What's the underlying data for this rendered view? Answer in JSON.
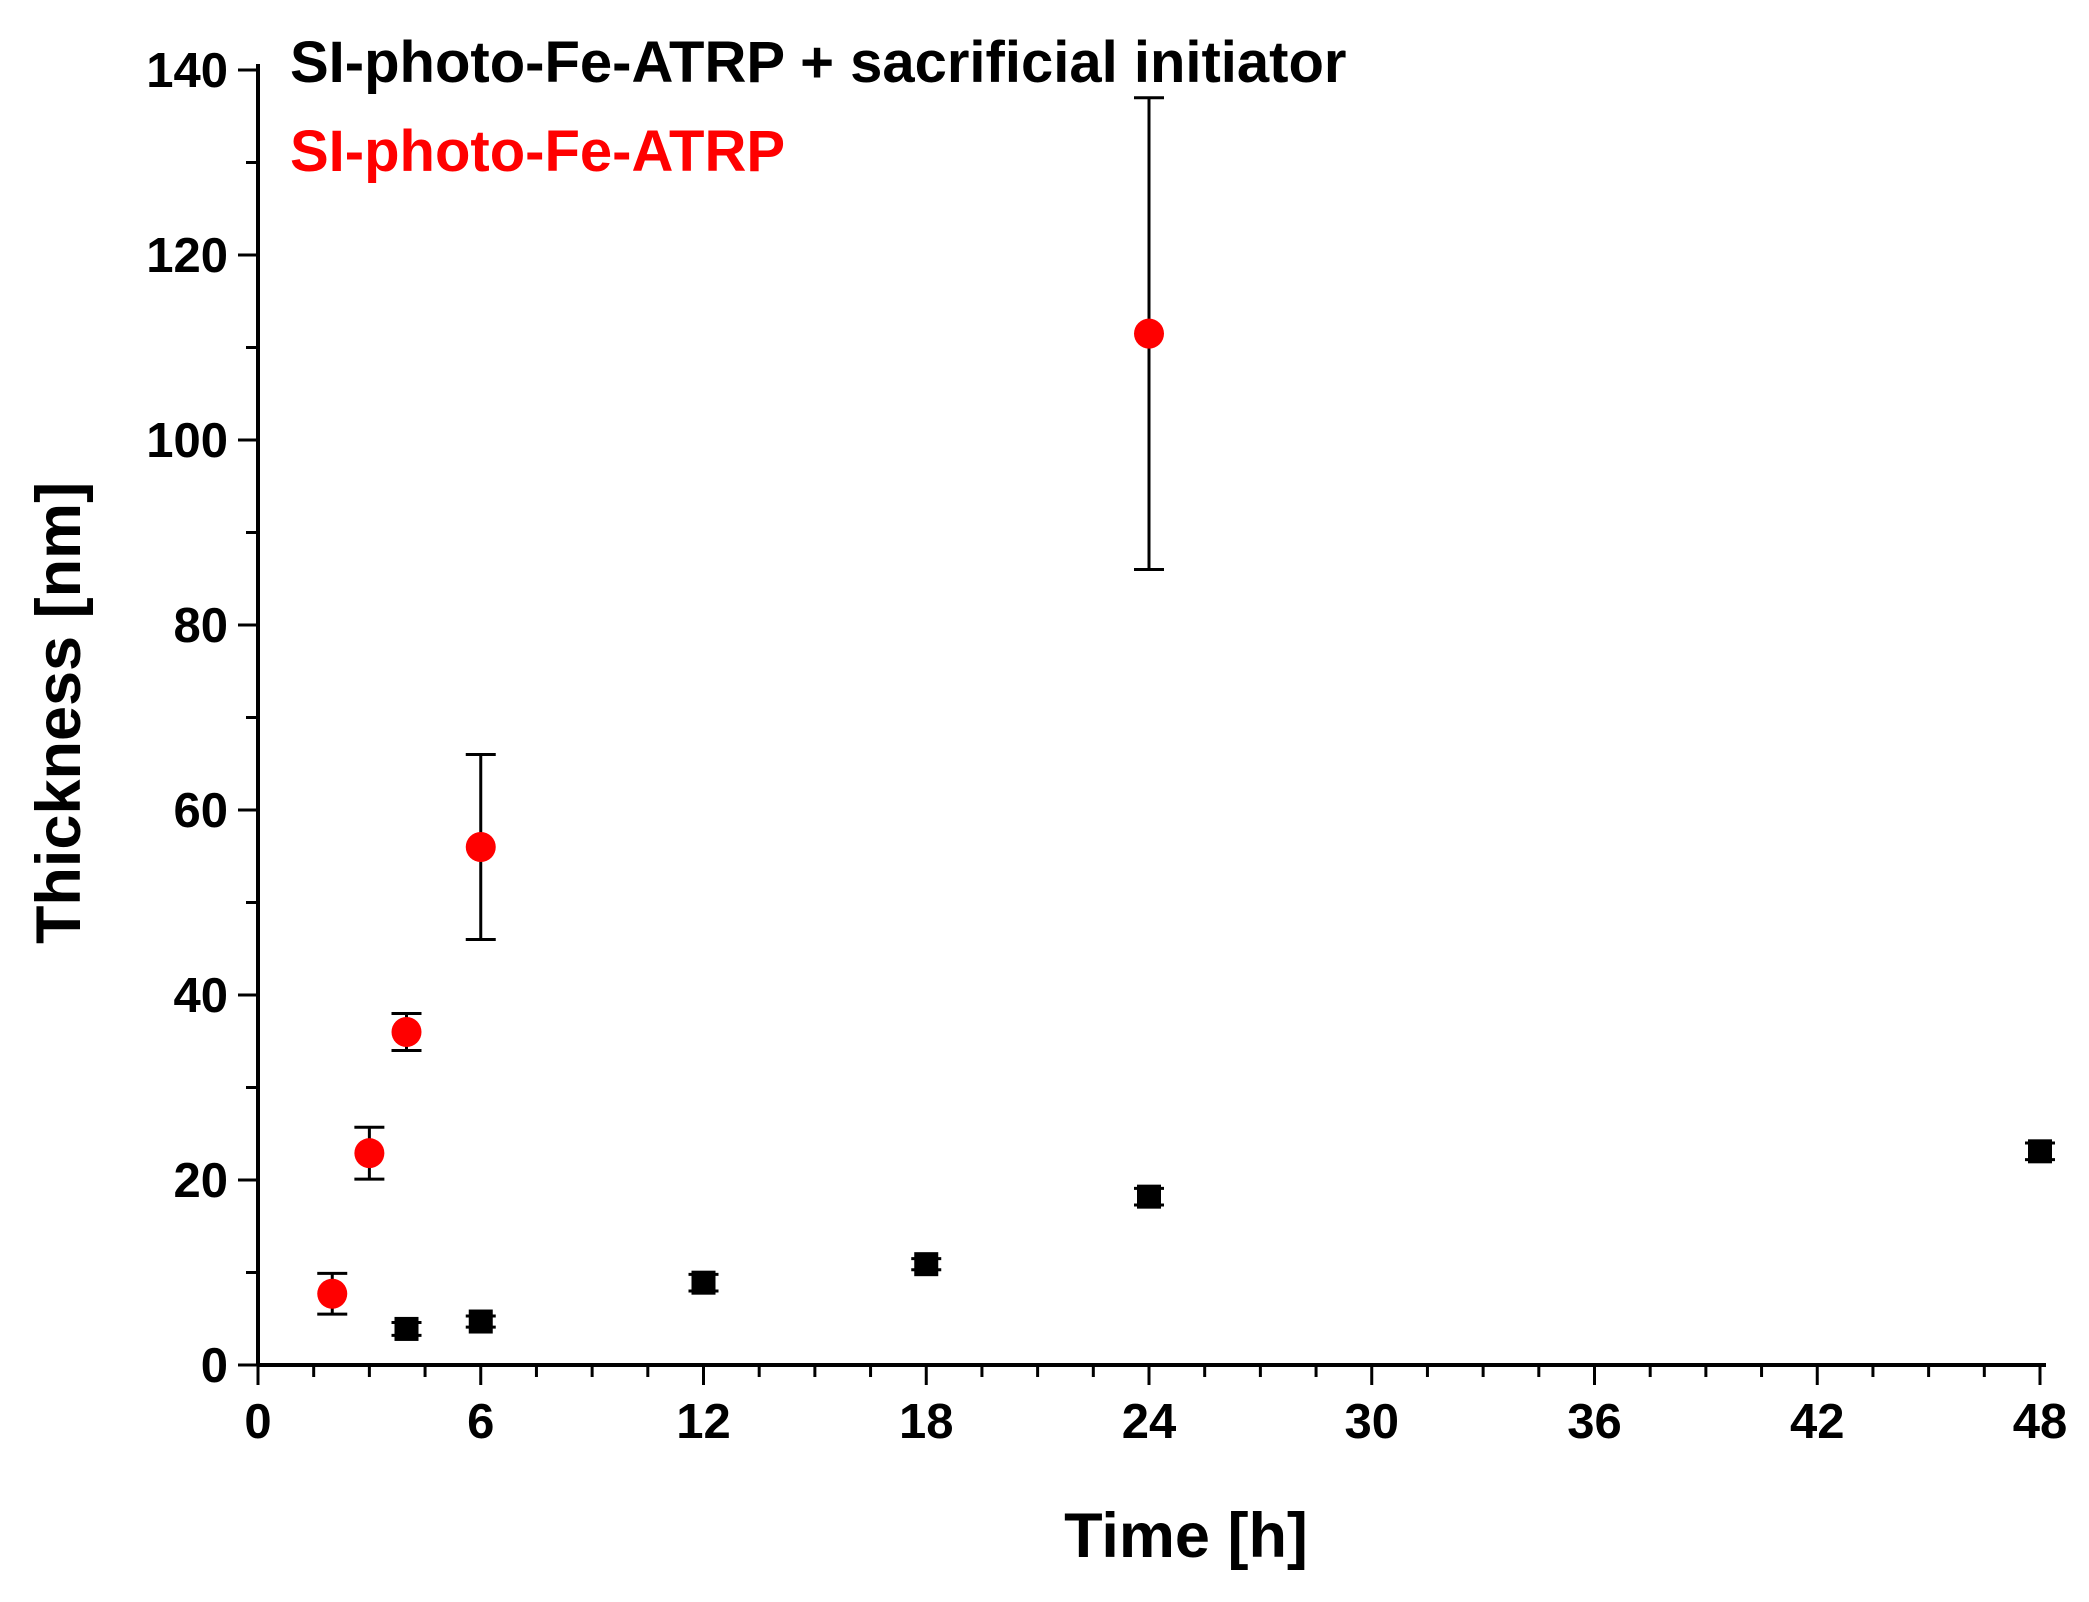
{
  "chart_data": {
    "type": "scatter",
    "title": "",
    "xlabel": "Time [h]",
    "ylabel": "Thickness [nm]",
    "xlim": [
      0,
      48
    ],
    "ylim": [
      0,
      140
    ],
    "x_ticks": [
      0,
      6,
      12,
      18,
      24,
      30,
      36,
      42,
      48
    ],
    "y_ticks": [
      0,
      20,
      40,
      60,
      80,
      100,
      120,
      140
    ],
    "legend_position": "top-left",
    "series": [
      {
        "name": "SI-photo-Fe-ATRP + sacrificial initiator",
        "color": "#000000",
        "marker": "square",
        "points": [
          {
            "x": 4,
            "y": 3.9,
            "err": 0.7
          },
          {
            "x": 6,
            "y": 4.7,
            "err": 0.6
          },
          {
            "x": 12,
            "y": 8.9,
            "err": 0.9
          },
          {
            "x": 18,
            "y": 10.9,
            "err": 0.6
          },
          {
            "x": 24,
            "y": 18.2,
            "err": 0.9
          },
          {
            "x": 48,
            "y": 23.1,
            "err": 0.9
          }
        ]
      },
      {
        "name": "SI-photo-Fe-ATRP",
        "color": "#ff0000",
        "marker": "circle",
        "points": [
          {
            "x": 2,
            "y": 7.7,
            "err": 2.2
          },
          {
            "x": 3,
            "y": 22.9,
            "err": 2.8
          },
          {
            "x": 4,
            "y": 36.0,
            "err": 2.0
          },
          {
            "x": 6,
            "y": 56.0,
            "err": 10.0
          },
          {
            "x": 24,
            "y": 111.5,
            "err": 25.5
          }
        ]
      }
    ]
  }
}
